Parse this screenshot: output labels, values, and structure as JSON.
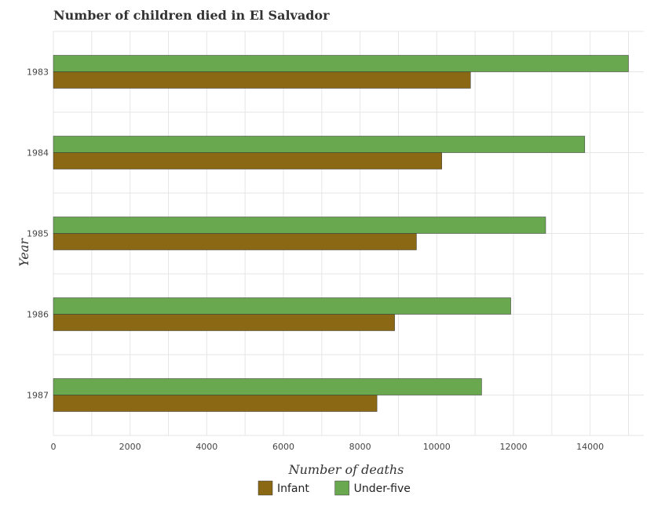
{
  "chart_data": {
    "type": "bar",
    "orientation": "horizontal",
    "title": "Number of children died in El Salvador",
    "xlabel": "Number of deaths",
    "ylabel": "Year",
    "categories": [
      "1983",
      "1984",
      "1985",
      "1986",
      "1987"
    ],
    "series": [
      {
        "name": "Infant",
        "color": "#8b6914",
        "values": [
          10880,
          10130,
          9470,
          8900,
          8440
        ]
      },
      {
        "name": "Under-five",
        "color": "#6aa84f",
        "values": [
          15000,
          13860,
          12840,
          11930,
          11170
        ]
      }
    ],
    "xlim": [
      0,
      15400
    ],
    "xticks": [
      0,
      2000,
      4000,
      6000,
      8000,
      10000,
      12000,
      14000
    ],
    "grid": true,
    "legend_position": "bottom"
  }
}
